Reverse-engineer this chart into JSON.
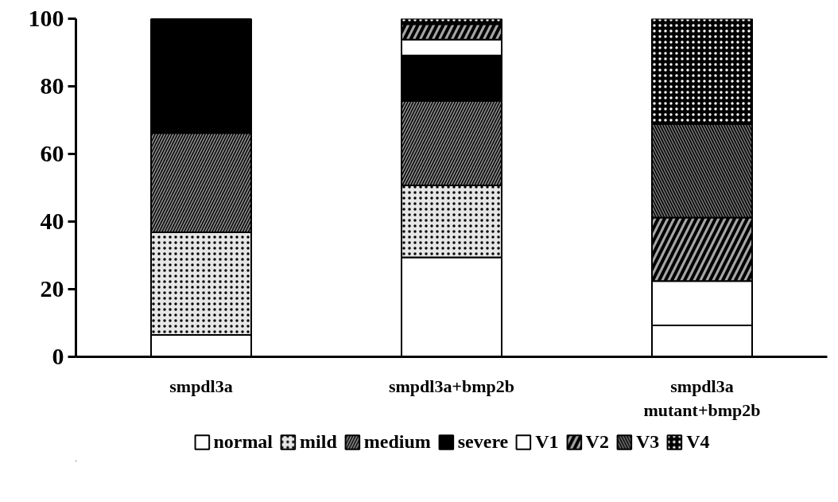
{
  "chart_data": {
    "type": "bar",
    "stacked": true,
    "categories": [
      "smpdl3a",
      "smpdl3a+bmp2b",
      "smpdl3a\nmutant+bmp2b"
    ],
    "series": [
      {
        "name": "normal",
        "color": "#ffffff",
        "values": [
          6.5,
          29.4,
          9.3
        ]
      },
      {
        "name": "mild",
        "color": "#e6e6e6",
        "values": [
          30.3,
          21.3,
          0
        ]
      },
      {
        "name": "medium",
        "color": "#8c8c8c",
        "values": [
          29.4,
          25.0,
          0
        ]
      },
      {
        "name": "severe",
        "color": "#000000",
        "values": [
          33.8,
          13.4,
          0
        ]
      },
      {
        "name": "V1",
        "color": "#ffffff",
        "values": [
          0,
          4.7,
          13.1
        ]
      },
      {
        "name": "V2",
        "color": "#a6a6a6",
        "values": [
          0,
          4.6,
          18.8
        ]
      },
      {
        "name": "V3",
        "color": "#737373",
        "values": [
          0,
          0,
          27.6
        ]
      },
      {
        "name": "V4",
        "color": "#000000",
        "values": [
          0,
          1.6,
          31.2
        ]
      }
    ],
    "ylim": [
      0,
      100
    ],
    "yticks": [
      0,
      20,
      40,
      60,
      80,
      100
    ],
    "grid": false,
    "legend": "bottom"
  }
}
